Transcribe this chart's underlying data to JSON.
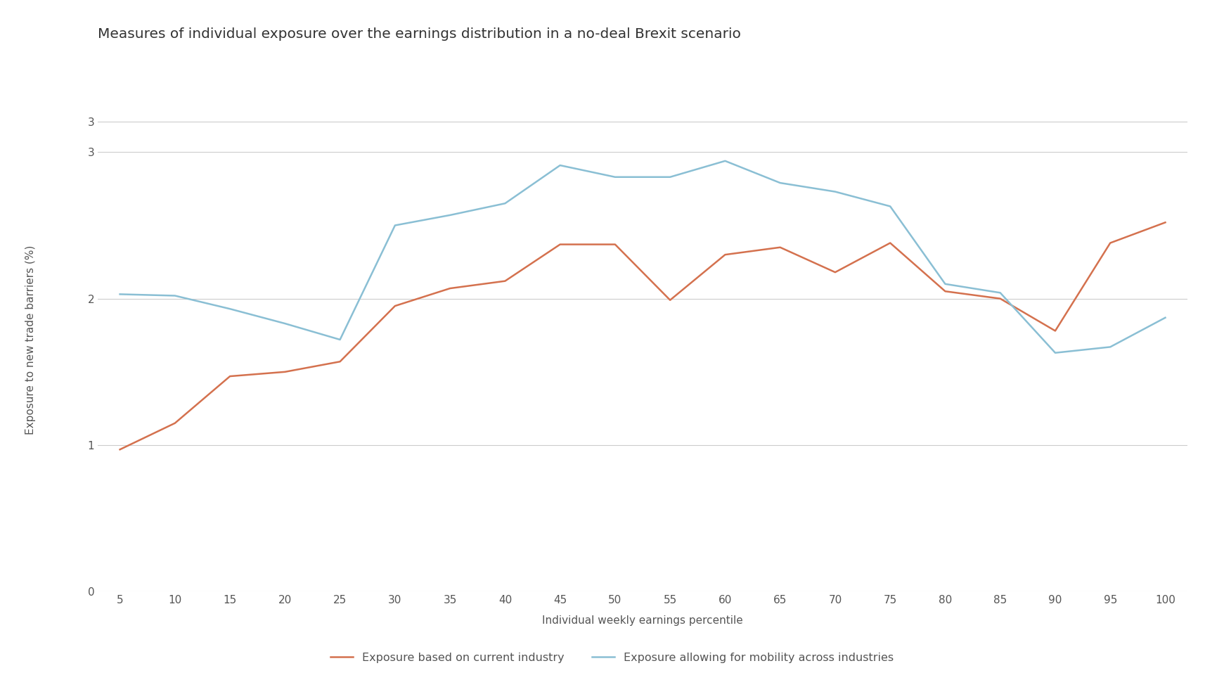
{
  "title": "Measures of individual exposure over the earnings distribution in a no-deal Brexit scenario",
  "xlabel": "Individual weekly earnings percentile",
  "ylabel": "Exposure to new trade barriers (%)",
  "x": [
    5,
    10,
    15,
    20,
    25,
    30,
    35,
    40,
    45,
    50,
    55,
    60,
    65,
    70,
    75,
    80,
    85,
    90,
    95,
    100
  ],
  "orange_line": [
    0.97,
    1.15,
    1.47,
    1.5,
    1.57,
    1.95,
    2.07,
    2.12,
    2.37,
    2.37,
    1.99,
    2.3,
    2.35,
    2.18,
    2.38,
    2.05,
    2.0,
    1.78,
    2.38,
    2.52
  ],
  "blue_line": [
    2.03,
    2.02,
    1.93,
    1.83,
    1.72,
    2.5,
    2.57,
    2.65,
    2.91,
    2.83,
    2.83,
    2.94,
    2.79,
    2.73,
    2.63,
    2.1,
    2.04,
    1.63,
    1.67,
    1.87
  ],
  "orange_color": "#D4714E",
  "blue_color": "#8ABFD4",
  "orange_label": "Exposure based on current industry",
  "blue_label": "Exposure allowing for mobility across industries",
  "background_color": "#ffffff",
  "grid_color": "#cccccc",
  "title_fontsize": 14.5,
  "axis_fontsize": 11,
  "legend_fontsize": 11.5,
  "tick_fontsize": 11
}
